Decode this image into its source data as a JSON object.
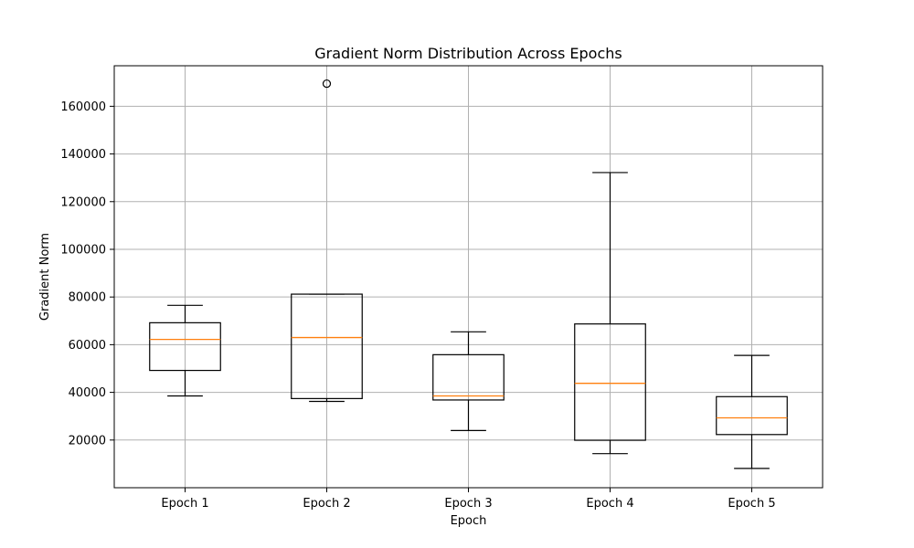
{
  "chart_data": {
    "type": "box",
    "title": "Gradient Norm Distribution Across Epochs",
    "xlabel": "Epoch",
    "ylabel": "Gradient Norm",
    "categories": [
      "Epoch 1",
      "Epoch 2",
      "Epoch 3",
      "Epoch 4",
      "Epoch 5"
    ],
    "yticks": [
      20000,
      40000,
      60000,
      80000,
      100000,
      120000,
      140000,
      160000
    ],
    "ylim": [
      0,
      177000
    ],
    "grid": true,
    "boxes": [
      {
        "category": "Epoch 1",
        "whisker_low": 38500,
        "q1": 49200,
        "median": 62200,
        "q3": 69200,
        "whisker_high": 76500,
        "outliers": []
      },
      {
        "category": "Epoch 2",
        "whisker_low": 36200,
        "q1": 37400,
        "median": 63000,
        "q3": 81200,
        "whisker_high": 81200,
        "outliers": [
          169500
        ]
      },
      {
        "category": "Epoch 3",
        "whisker_low": 24000,
        "q1": 36800,
        "median": 38500,
        "q3": 55800,
        "whisker_high": 65400,
        "outliers": []
      },
      {
        "category": "Epoch 4",
        "whisker_low": 14300,
        "q1": 19900,
        "median": 43800,
        "q3": 68700,
        "whisker_high": 132200,
        "outliers": []
      },
      {
        "category": "Epoch 5",
        "whisker_low": 8100,
        "q1": 22300,
        "median": 29300,
        "q3": 38200,
        "whisker_high": 55500,
        "outliers": []
      }
    ],
    "colors": {
      "box": "#000000",
      "median": "#ff7f0e",
      "grid": "#b0b0b0",
      "background": "#ffffff"
    }
  }
}
